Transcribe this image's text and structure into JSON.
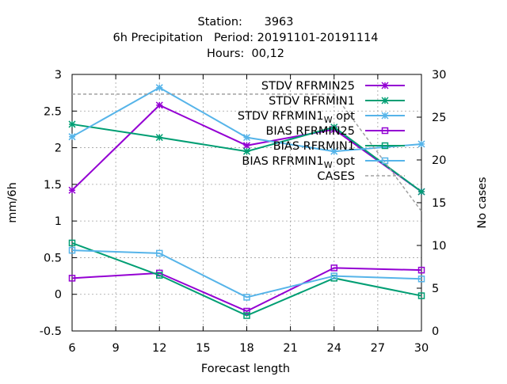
{
  "chart_data": {
    "type": "line",
    "title_lines": [
      "Station:      3963",
      "6h Precipitation   Period: 20191101-20191114",
      "Hours:  00,12"
    ],
    "xlabel": "Forecast length",
    "ylabel": "mm/6h",
    "y2label": "No cases",
    "x": [
      6,
      12,
      18,
      24,
      30
    ],
    "xticks": [
      "6",
      "9",
      "12",
      "15",
      "18",
      "21",
      "24",
      "27",
      "30"
    ],
    "xtick_values": [
      6,
      9,
      12,
      15,
      18,
      21,
      24,
      27,
      30
    ],
    "yticks": [
      "-0.5",
      "0",
      "0.5",
      "1",
      "1.5",
      "2",
      "2.5",
      "3"
    ],
    "ytick_values": [
      -0.5,
      0,
      0.5,
      1,
      1.5,
      2,
      2.5,
      3
    ],
    "y2ticks": [
      "0",
      "5",
      "10",
      "15",
      "20",
      "25",
      "30"
    ],
    "y2tick_values": [
      0,
      5,
      10,
      15,
      20,
      25,
      30
    ],
    "xlim": [
      6,
      30
    ],
    "ylim": [
      -0.5,
      3
    ],
    "y2lim": [
      0,
      30
    ],
    "grid": true,
    "legend_position": "top-right",
    "series": [
      {
        "name": "STDV RFRMIN25",
        "name_main": "STDV RFRMIN25",
        "name_sub": "",
        "name_tail": "",
        "color": "#9400d3",
        "marker": "star",
        "axis": "y1",
        "values": [
          1.42,
          2.58,
          2.03,
          2.25,
          1.4
        ]
      },
      {
        "name": "STDV RFRMIN1",
        "name_main": "STDV RFRMIN1",
        "name_sub": "",
        "name_tail": "",
        "color": "#009e73",
        "marker": "star",
        "axis": "y1",
        "values": [
          2.32,
          2.14,
          1.95,
          2.28,
          1.4
        ]
      },
      {
        "name": "STDV RFRMIN1_W opt",
        "name_main": "STDV RFRMIN1",
        "name_sub": "W",
        "name_tail": " opt",
        "color": "#56b4e9",
        "marker": "star",
        "axis": "y1",
        "values": [
          2.15,
          2.82,
          2.14,
          1.95,
          2.05
        ]
      },
      {
        "name": "BIAS RFRMIN25",
        "name_main": "BIAS RFRMIN25",
        "name_sub": "",
        "name_tail": "",
        "color": "#9400d3",
        "marker": "square",
        "axis": "y1",
        "values": [
          0.22,
          0.29,
          -0.23,
          0.36,
          0.33
        ]
      },
      {
        "name": "BIAS RFRMIN1",
        "name_main": "BIAS RFRMIN1",
        "name_sub": "",
        "name_tail": "",
        "color": "#009e73",
        "marker": "square",
        "axis": "y1",
        "values": [
          0.7,
          0.26,
          -0.29,
          0.22,
          -0.02
        ]
      },
      {
        "name": "BIAS RFRMIN1_W opt",
        "name_main": "BIAS RFRMIN1",
        "name_sub": "W",
        "name_tail": " opt",
        "color": "#56b4e9",
        "marker": "square",
        "axis": "y1",
        "values": [
          0.6,
          0.56,
          -0.04,
          0.25,
          0.21
        ]
      },
      {
        "name": "CASES",
        "name_main": "CASES",
        "name_sub": "",
        "name_tail": "",
        "color": "#a0a0a0",
        "marker": "none",
        "dashed": true,
        "axis": "y2",
        "values": [
          27.7,
          27.7,
          27.7,
          27.7,
          14.0
        ]
      }
    ]
  }
}
